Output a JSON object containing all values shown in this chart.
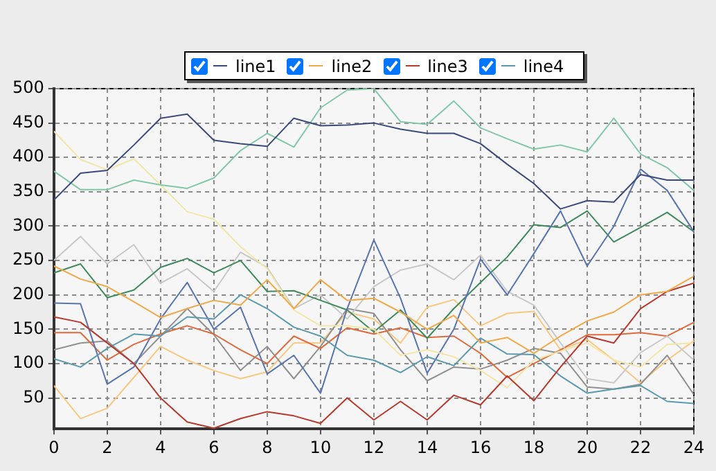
{
  "chart_data": {
    "type": "line",
    "legend": "top",
    "grid": true,
    "marker": "none",
    "line_style": "solid",
    "x": [
      0,
      1,
      2,
      3,
      4,
      5,
      6,
      7,
      8,
      9,
      10,
      11,
      12,
      13,
      14,
      15,
      16,
      17,
      18,
      19,
      20,
      21,
      22,
      23,
      24
    ],
    "xlim": [
      0,
      24
    ],
    "xticks": [
      0,
      2,
      4,
      6,
      8,
      10,
      12,
      14,
      16,
      18,
      20,
      22,
      24
    ],
    "ylim": [
      5,
      500
    ],
    "yticks": [
      50,
      100,
      150,
      200,
      250,
      300,
      350,
      400,
      450,
      500
    ],
    "series": [
      {
        "name": "line1",
        "color": "#3b4a7a",
        "values": [
          338,
          377,
          381,
          418,
          457,
          463,
          425,
          420,
          416,
          457,
          446,
          447,
          450,
          441,
          435,
          435,
          420,
          390,
          362,
          325,
          337,
          335,
          375,
          367,
          367
        ]
      },
      {
        "name": "line2",
        "color": "#f0a848",
        "values": [
          242,
          223,
          212,
          190,
          167,
          180,
          192,
          185,
          222,
          180,
          222,
          192,
          195,
          175,
          150,
          170,
          130,
          138,
          115,
          140,
          162,
          175,
          200,
          205,
          227
        ]
      },
      {
        "name": "line3",
        "color": "#b8382e",
        "values": [
          168,
          160,
          130,
          100,
          50,
          15,
          6,
          20,
          30,
          24,
          13,
          50,
          18,
          45,
          18,
          54,
          40,
          82,
          46,
          95,
          140,
          130,
          180,
          205,
          217
        ]
      },
      {
        "name": "line4",
        "color": "#5a9aac",
        "values": [
          107,
          95,
          122,
          143,
          140,
          168,
          165,
          200,
          180,
          153,
          140,
          112,
          105,
          87,
          110,
          97,
          137,
          114,
          113,
          82,
          57,
          63,
          68,
          45,
          42
        ]
      },
      {
        "color": "#80c8a8",
        "values": [
          380,
          353,
          353,
          367,
          360,
          355,
          370,
          410,
          435,
          415,
          472,
          498,
          500,
          452,
          448,
          482,
          443,
          427,
          412,
          418,
          408,
          457,
          405,
          385,
          352
        ]
      },
      {
        "color": "#f2e6a8",
        "values": [
          438,
          397,
          382,
          398,
          360,
          321,
          310,
          270,
          238,
          178,
          155,
          155,
          150,
          112,
          120,
          110,
          90,
          65,
          105,
          118,
          130,
          105,
          95,
          128,
          130
        ]
      },
      {
        "color": "#5874b0",
        "values": [
          188,
          187,
          70,
          95,
          165,
          218,
          150,
          182,
          85,
          112,
          57,
          180,
          280,
          195,
          86,
          150,
          252,
          200,
          260,
          322,
          242,
          300,
          383,
          352,
          292
        ]
      },
      {
        "color": "#3f8a5c",
        "values": [
          232,
          245,
          196,
          207,
          240,
          253,
          232,
          250,
          205,
          206,
          192,
          178,
          146,
          178,
          137,
          180,
          218,
          255,
          302,
          298,
          322,
          277,
          298,
          320,
          292
        ]
      },
      {
        "color": "#c8c8c8",
        "values": [
          250,
          285,
          245,
          273,
          217,
          238,
          205,
          262,
          240,
          180,
          200,
          165,
          212,
          236,
          245,
          222,
          258,
          205,
          185,
          130,
          78,
          72,
          116,
          140,
          105
        ]
      },
      {
        "color": "#e06a3c",
        "values": [
          145,
          145,
          105,
          128,
          143,
          155,
          143,
          120,
          100,
          140,
          122,
          152,
          143,
          152,
          138,
          140,
          115,
          80,
          100,
          120,
          142,
          142,
          145,
          140,
          160
        ]
      },
      {
        "color": "#909090",
        "values": [
          120,
          130,
          133,
          100,
          140,
          180,
          142,
          90,
          125,
          78,
          125,
          180,
          173,
          120,
          75,
          95,
          92,
          105,
          122,
          115,
          66,
          63,
          70,
          112,
          55
        ]
      },
      {
        "color": "#f8c880",
        "values": [
          68,
          20,
          35,
          80,
          125,
          105,
          90,
          78,
          88,
          130,
          130,
          175,
          165,
          130,
          182,
          193,
          155,
          173,
          176,
          120,
          135,
          105,
          72,
          105,
          133
        ]
      }
    ]
  }
}
